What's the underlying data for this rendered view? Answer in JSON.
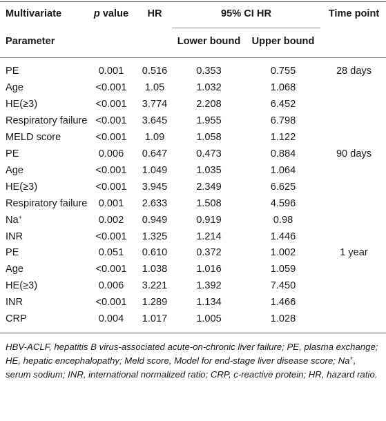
{
  "header": {
    "multivariate": "Multivariate",
    "parameter": "Parameter",
    "p_italic": "p",
    "p_rest": " value",
    "hr": "HR",
    "ci": "95% CI HR",
    "lower": "Lower bound",
    "upper": "Upper bound",
    "time_point": "Time point"
  },
  "rows": [
    {
      "param": "PE",
      "sup": "",
      "p": "0.001",
      "hr": "0.516",
      "lower": "0.353",
      "upper": "0.755",
      "time": "28 days"
    },
    {
      "param": "Age",
      "sup": "",
      "p": "<0.001",
      "hr": "1.05",
      "lower": "1.032",
      "upper": "1.068",
      "time": ""
    },
    {
      "param": "HE(≥3)",
      "sup": "",
      "p": "<0.001",
      "hr": "3.774",
      "lower": "2.208",
      "upper": "6.452",
      "time": ""
    },
    {
      "param": "Respiratory failure",
      "sup": "",
      "p": "<0.001",
      "hr": "3.645",
      "lower": "1.955",
      "upper": "6.798",
      "time": ""
    },
    {
      "param": "MELD score",
      "sup": "",
      "p": "<0.001",
      "hr": "1.09",
      "lower": "1.058",
      "upper": "1.122",
      "time": ""
    },
    {
      "param": "PE",
      "sup": "",
      "p": "0.006",
      "hr": "0.647",
      "lower": "0.473",
      "upper": "0.884",
      "time": "90 days"
    },
    {
      "param": "Age",
      "sup": "",
      "p": "<0.001",
      "hr": "1.049",
      "lower": "1.035",
      "upper": "1.064",
      "time": ""
    },
    {
      "param": "HE(≥3)",
      "sup": "",
      "p": "<0.001",
      "hr": "3.945",
      "lower": "2.349",
      "upper": "6.625",
      "time": ""
    },
    {
      "param": "Respiratory failure",
      "sup": "",
      "p": "0.001",
      "hr": "2.633",
      "lower": "1.508",
      "upper": "4.596",
      "time": ""
    },
    {
      "param": "Na",
      "sup": "+",
      "p": "0.002",
      "hr": "0.949",
      "lower": "0.919",
      "upper": "0.98",
      "time": ""
    },
    {
      "param": "INR",
      "sup": "",
      "p": "<0.001",
      "hr": "1.325",
      "lower": "1.214",
      "upper": "1.446",
      "time": ""
    },
    {
      "param": "PE",
      "sup": "",
      "p": "0.051",
      "hr": "0.610",
      "lower": "0.372",
      "upper": "1.002",
      "time": "1 year"
    },
    {
      "param": "Age",
      "sup": "",
      "p": "<0.001",
      "hr": "1.038",
      "lower": "1.016",
      "upper": "1.059",
      "time": ""
    },
    {
      "param": "HE(≥3)",
      "sup": "",
      "p": "0.006",
      "hr": "3.221",
      "lower": "1.392",
      "upper": "7.450",
      "time": ""
    },
    {
      "param": "INR",
      "sup": "",
      "p": "<0.001",
      "hr": "1.289",
      "lower": "1.134",
      "upper": "1.466",
      "time": ""
    },
    {
      "param": "CRP",
      "sup": "",
      "p": "0.004",
      "hr": "1.017",
      "lower": "1.005",
      "upper": "1.028",
      "time": ""
    }
  ],
  "footnote": {
    "before_sup": "HBV-ACLF, hepatitis B virus-associated acute-on-chronic liver failure; PE, plasma exchange; HE, hepatic encephalopathy; Meld score, Model for end-stage liver disease score; Na",
    "sup": "+",
    "after_sup": ", serum sodium; INR, international normalized ratio; CRP, c-reactive protein; HR, hazard ratio."
  }
}
